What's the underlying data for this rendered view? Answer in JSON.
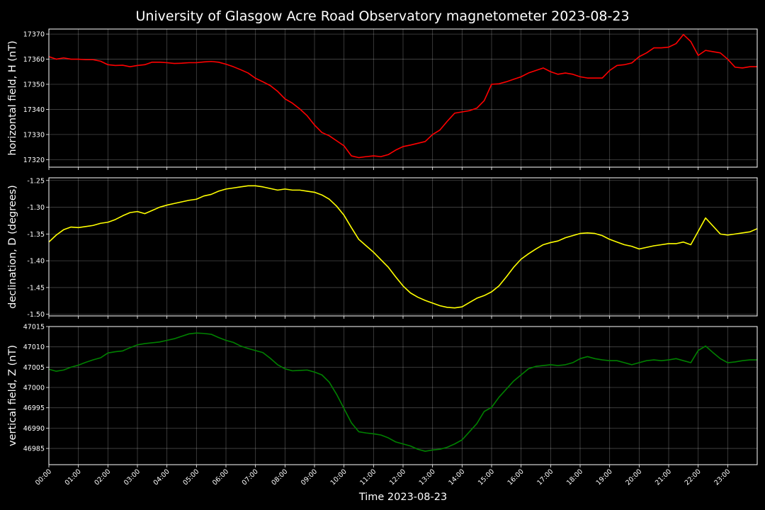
{
  "chart_data": {
    "type": "line",
    "title": "University of Glasgow Acre Road Observatory magnetometer 2023-08-23",
    "xlabel": "Time 2023-08-23",
    "x_ticks": [
      "00:00",
      "01:00",
      "02:00",
      "03:00",
      "04:00",
      "05:00",
      "06:00",
      "07:00",
      "08:00",
      "09:00",
      "10:00",
      "11:00",
      "12:00",
      "13:00",
      "14:00",
      "15:00",
      "16:00",
      "17:00",
      "18:00",
      "19:00",
      "20:00",
      "21:00",
      "22:00",
      "23:00"
    ],
    "xlim_hours": [
      0,
      24
    ],
    "grid": true,
    "panels": [
      {
        "ylabel": "horizontal field, H (nT)",
        "color": "#ff0000",
        "ylim": [
          17317,
          17372
        ],
        "y_ticks": [
          "17370",
          "17360",
          "17350",
          "17340",
          "17330",
          "17320"
        ],
        "y_tick_values": [
          17370,
          17360,
          17350,
          17340,
          17330,
          17320
        ],
        "series": [
          {
            "x": [
              0,
              0.25,
              0.5,
              0.75,
              1,
              1.25,
              1.5,
              1.75,
              2,
              2.25,
              2.5,
              2.75,
              3,
              3.25,
              3.5,
              3.75,
              4,
              4.25,
              4.5,
              4.75,
              5,
              5.25,
              5.5,
              5.75,
              6,
              6.25,
              6.5,
              6.75,
              7,
              7.25,
              7.5,
              7.75,
              8,
              8.25,
              8.5,
              8.75,
              9,
              9.25,
              9.5,
              9.75,
              10,
              10.25,
              10.5,
              10.75,
              11,
              11.25,
              11.5,
              11.75,
              12,
              12.25,
              12.5,
              12.75,
              13,
              13.25,
              13.5,
              13.75,
              14,
              14.25,
              14.5,
              14.75,
              15,
              15.25,
              15.5,
              15.75,
              16,
              16.25,
              16.5,
              16.75,
              17,
              17.25,
              17.5,
              17.75,
              18,
              18.25,
              18.5,
              18.75,
              19,
              19.25,
              19.5,
              19.75,
              20,
              20.25,
              20.5,
              20.75,
              21,
              21.25,
              21.5,
              21.75,
              22,
              22.25,
              22.5,
              22.75,
              23,
              23.25,
              23.5,
              23.75,
              24
            ],
            "y": [
              17361,
              17360,
              17360.5,
              17360,
              17360,
              17359.8,
              17359.8,
              17359.2,
              17357.8,
              17357.5,
              17357.6,
              17357,
              17357.5,
              17357.8,
              17358.8,
              17358.8,
              17358.6,
              17358.3,
              17358.4,
              17358.6,
              17358.6,
              17358.9,
              17359.1,
              17358.8,
              17358,
              17357,
              17355.8,
              17354.5,
              17352.4,
              17351,
              17349.5,
              17347.2,
              17344.2,
              17342.5,
              17340.2,
              17337.5,
              17333.8,
              17330.8,
              17329.5,
              17327.5,
              17325.5,
              17321.5,
              17320.8,
              17321.2,
              17321.5,
              17321.2,
              17322,
              17323.8,
              17325.2,
              17325.8,
              17326.5,
              17327.2,
              17330,
              17331.8,
              17335.3,
              17338.5,
              17339,
              17339.5,
              17340.5,
              17343.5,
              17350,
              17350.2,
              17351,
              17352,
              17353,
              17354.5,
              17355.5,
              17356.5,
              17355,
              17354,
              17354.5,
              17354,
              17353,
              17352.5,
              17352.5,
              17352.5,
              17355.5,
              17357.5,
              17357.8,
              17358.5,
              17361,
              17362.5,
              17364.5,
              17364.5,
              17364.8,
              17366.2,
              17369.8,
              17367,
              17361.5,
              17363.5,
              17363,
              17362.5,
              17360,
              17356.8,
              17356.5,
              17357,
              17357
            ]
          }
        ]
      },
      {
        "ylabel": "declination, D (degrees)",
        "color": "#ffff00",
        "ylim": [
          -1.503,
          -1.245
        ],
        "y_ticks": [
          "-1.25",
          "-1.30",
          "-1.35",
          "-1.40",
          "-1.45",
          "-1.50"
        ],
        "y_tick_values": [
          -1.25,
          -1.3,
          -1.35,
          -1.4,
          -1.45,
          -1.5
        ],
        "series": [
          {
            "x": [
              0,
              0.25,
              0.5,
              0.75,
              1,
              1.25,
              1.5,
              1.75,
              2,
              2.25,
              2.5,
              2.75,
              3,
              3.25,
              3.5,
              3.75,
              4,
              4.25,
              4.5,
              4.75,
              5,
              5.25,
              5.5,
              5.75,
              6,
              6.25,
              6.5,
              6.75,
              7,
              7.25,
              7.5,
              7.75,
              8,
              8.25,
              8.5,
              8.75,
              9,
              9.25,
              9.5,
              9.75,
              10,
              10.25,
              10.5,
              10.75,
              11,
              11.25,
              11.5,
              11.75,
              12,
              12.25,
              12.5,
              12.75,
              13,
              13.25,
              13.5,
              13.75,
              14,
              14.25,
              14.5,
              14.75,
              15,
              15.25,
              15.5,
              15.75,
              16,
              16.25,
              16.5,
              16.75,
              17,
              17.25,
              17.5,
              17.75,
              18,
              18.25,
              18.5,
              18.75,
              19,
              19.25,
              19.5,
              19.75,
              20,
              20.25,
              20.5,
              20.75,
              21,
              21.25,
              21.5,
              21.75,
              22,
              22.25,
              22.5,
              22.75,
              23,
              23.25,
              23.5,
              23.75,
              24
            ],
            "y": [
              -1.365,
              -1.352,
              -1.342,
              -1.337,
              -1.338,
              -1.336,
              -1.334,
              -1.33,
              -1.328,
              -1.323,
              -1.316,
              -1.31,
              -1.308,
              -1.312,
              -1.306,
              -1.3,
              -1.296,
              -1.293,
              -1.29,
              -1.287,
              -1.285,
              -1.279,
              -1.276,
              -1.27,
              -1.266,
              -1.264,
              -1.262,
              -1.26,
              -1.26,
              -1.262,
              -1.265,
              -1.268,
              -1.266,
              -1.268,
              -1.268,
              -1.27,
              -1.272,
              -1.277,
              -1.285,
              -1.298,
              -1.315,
              -1.338,
              -1.36,
              -1.372,
              -1.384,
              -1.398,
              -1.412,
              -1.43,
              -1.447,
              -1.46,
              -1.468,
              -1.474,
              -1.479,
              -1.484,
              -1.487,
              -1.488,
              -1.486,
              -1.478,
              -1.47,
              -1.465,
              -1.458,
              -1.447,
              -1.43,
              -1.412,
              -1.397,
              -1.387,
              -1.378,
              -1.37,
              -1.366,
              -1.363,
              -1.357,
              -1.353,
              -1.349,
              -1.348,
              -1.349,
              -1.353,
              -1.36,
              -1.365,
              -1.37,
              -1.373,
              -1.378,
              -1.375,
              -1.372,
              -1.37,
              -1.368,
              -1.368,
              -1.365,
              -1.37,
              -1.345,
              -1.32,
              -1.335,
              -1.35,
              -1.352,
              -1.35,
              -1.348,
              -1.346,
              -1.34
            ]
          }
        ]
      },
      {
        "ylabel": "vertical field, Z (nT)",
        "color": "#008000",
        "ylim": [
          46981,
          47015
        ],
        "y_ticks": [
          "47015",
          "47010",
          "47005",
          "47000",
          "46995",
          "46990",
          "46985"
        ],
        "y_tick_values": [
          47015,
          47010,
          47005,
          47000,
          46995,
          46990,
          46985
        ],
        "series": [
          {
            "x": [
              0,
              0.25,
              0.5,
              0.75,
              1,
              1.25,
              1.5,
              1.75,
              2,
              2.25,
              2.5,
              2.75,
              3,
              3.25,
              3.5,
              3.75,
              4,
              4.25,
              4.5,
              4.75,
              5,
              5.25,
              5.5,
              5.75,
              6,
              6.25,
              6.5,
              6.75,
              7,
              7.25,
              7.5,
              7.75,
              8,
              8.25,
              8.5,
              8.75,
              9,
              9.25,
              9.5,
              9.75,
              10,
              10.25,
              10.5,
              10.75,
              11,
              11.25,
              11.5,
              11.75,
              12,
              12.25,
              12.5,
              12.75,
              13,
              13.25,
              13.5,
              13.75,
              14,
              14.25,
              14.5,
              14.75,
              15,
              15.25,
              15.5,
              15.75,
              16,
              16.25,
              16.5,
              16.75,
              17,
              17.25,
              17.5,
              17.75,
              18,
              18.25,
              18.5,
              18.75,
              19,
              19.25,
              19.5,
              19.75,
              20,
              20.25,
              20.5,
              20.75,
              21,
              21.25,
              21.5,
              21.75,
              22,
              22.25,
              22.5,
              22.75,
              23,
              23.25,
              23.5,
              23.75,
              24
            ],
            "y": [
              47004.5,
              47004,
              47004.3,
              47005,
              47005.5,
              47006.2,
              47006.8,
              47007.3,
              47008.5,
              47008.8,
              47009,
              47009.8,
              47010.5,
              47010.8,
              47011,
              47011.2,
              47011.6,
              47012,
              47012.6,
              47013.2,
              47013.4,
              47013.3,
              47013.1,
              47012.3,
              47011.6,
              47011.1,
              47010.2,
              47009.6,
              47009.1,
              47008.6,
              47007.2,
              47005.6,
              47004.6,
              47004.1,
              47004.2,
              47004.3,
              47003.8,
              47003.1,
              47001.3,
              46998.3,
              46994.8,
              46991.3,
              46989.1,
              46988.8,
              46988.6,
              46988.3,
              46987.6,
              46986.6,
              46986.1,
              46985.6,
              46984.8,
              46984.3,
              46984.6,
              46984.8,
              46985.3,
              46986.1,
              46987.1,
              46989.1,
              46991.1,
              46994.1,
              46995.1,
              46997.6,
              46999.6,
              47001.6,
              47003.1,
              47004.6,
              47005.2,
              47005.4,
              47005.6,
              47005.4,
              47005.6,
              47006.1,
              47007.1,
              47007.6,
              47007.1,
              47006.8,
              47006.6,
              47006.6,
              47006.1,
              47005.6,
              47006.1,
              47006.6,
              47006.8,
              47006.6,
              47006.8,
              47007.1,
              47006.6,
              47006.1,
              47009.1,
              47010.2,
              47008.6,
              47007.1,
              47006.1,
              47006.3,
              47006.6,
              47006.8,
              47006.8
            ]
          }
        ]
      }
    ]
  }
}
